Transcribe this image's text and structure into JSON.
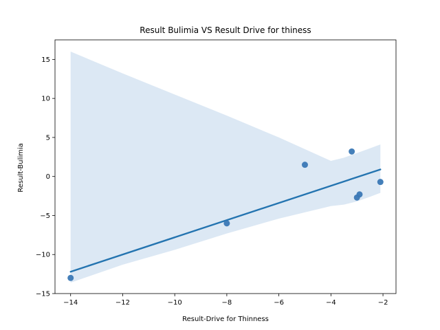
{
  "chart_data": {
    "type": "scatter",
    "title": "Result Bulimia VS Result Drive for thiness",
    "xlabel": "Result-Drive for Thinness",
    "ylabel": "Result-Bulimia",
    "xlim": [
      -14.6,
      -1.5
    ],
    "ylim": [
      -15,
      17.5
    ],
    "xticks": [
      -14,
      -12,
      -10,
      -8,
      -6,
      -4,
      -2
    ],
    "yticks": [
      -15,
      -10,
      -5,
      0,
      5,
      10,
      15
    ],
    "x_tick_labels": [
      "−14",
      "−12",
      "−10",
      "−8",
      "−6",
      "−4",
      "−2"
    ],
    "y_tick_labels": [
      "−15",
      "−10",
      "−5",
      "0",
      "5",
      "10",
      "15"
    ],
    "grid": false,
    "series": [
      {
        "points": [
          {
            "x": -14,
            "y": -13
          },
          {
            "x": -8,
            "y": -6
          },
          {
            "x": -5,
            "y": 1.5
          },
          {
            "x": -3.2,
            "y": 3.2
          },
          {
            "x": -3,
            "y": -2.7
          },
          {
            "x": -2.9,
            "y": -2.3
          },
          {
            "x": -2.1,
            "y": -0.7
          }
        ]
      }
    ],
    "regression": {
      "x": [
        -14,
        -2.1
      ],
      "y": [
        -12.2,
        0.9
      ]
    },
    "confidence_band": {
      "x": [
        -14,
        -12,
        -10,
        -8,
        -6,
        -4,
        -3.5,
        -3,
        -2.5,
        -2.1
      ],
      "upper": [
        16,
        13.2,
        10.5,
        7.8,
        5,
        2,
        2.4,
        3,
        3.6,
        4.1
      ],
      "lower": [
        -13.6,
        -11.3,
        -9.4,
        -7.3,
        -5.4,
        -3.8,
        -3.6,
        -3.2,
        -2.6,
        -2.1
      ]
    },
    "colors": {
      "points": "#3a78b5",
      "line": "#2474b0",
      "band": "#dce8f4",
      "axis": "#000000"
    }
  }
}
